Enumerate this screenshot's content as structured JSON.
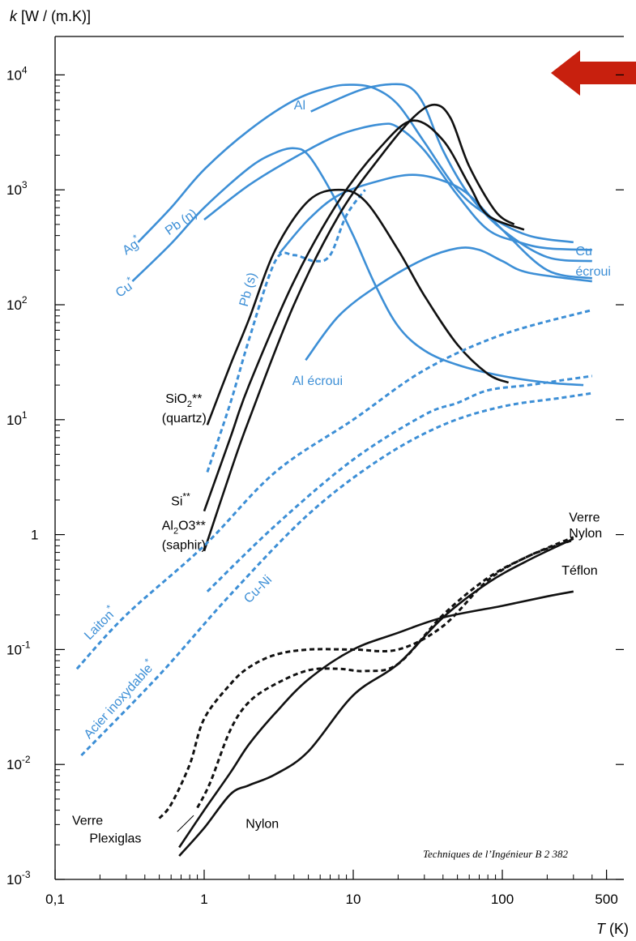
{
  "chart_data": {
    "type": "line",
    "x_scale": "log",
    "y_scale": "log",
    "xlim": [
      0.1,
      500
    ],
    "ylim": [
      0.001,
      10000
    ],
    "ylabel": "k [W / (m.K)]",
    "xlabel": "T (K)",
    "x_ticks": [
      {
        "value": 0.1,
        "label": "0,1"
      },
      {
        "value": 1,
        "label": "1"
      },
      {
        "value": 10,
        "label": "10"
      },
      {
        "value": 100,
        "label": "100"
      },
      {
        "value": 500,
        "label": "500"
      }
    ],
    "y_ticks": [
      {
        "value": 0.001,
        "label": "10-3",
        "base": "10",
        "exp": "-3"
      },
      {
        "value": 0.01,
        "label": "10-2",
        "base": "10",
        "exp": "-2"
      },
      {
        "value": 0.1,
        "label": "10-1",
        "base": "10",
        "exp": "-1"
      },
      {
        "value": 1,
        "label": "1",
        "base": "1",
        "exp": ""
      },
      {
        "value": 10,
        "label": "101",
        "base": "10",
        "exp": "1"
      },
      {
        "value": 100,
        "label": "102",
        "base": "10",
        "exp": "2"
      },
      {
        "value": 1000,
        "label": "103",
        "base": "10",
        "exp": "3"
      },
      {
        "value": 10000,
        "label": "104",
        "base": "10",
        "exp": "4"
      }
    ],
    "colors": {
      "blue": "#3d8fd6",
      "black": "#111111",
      "arrow": "#c8200e"
    },
    "series": [
      {
        "name": "Ag*",
        "color": "blue",
        "dashed": false,
        "points": [
          [
            0.36,
            350
          ],
          [
            0.6,
            700
          ],
          [
            1,
            1500
          ],
          [
            2,
            3300
          ],
          [
            4,
            6000
          ],
          [
            7,
            7800
          ],
          [
            10,
            8200
          ],
          [
            14,
            7600
          ],
          [
            20,
            5500
          ],
          [
            30,
            2600
          ],
          [
            50,
            1000
          ],
          [
            80,
            600
          ],
          [
            150,
            400
          ],
          [
            300,
            350
          ]
        ]
      },
      {
        "name": "Cu*",
        "color": "blue",
        "dashed": false,
        "points": [
          [
            0.33,
            160
          ],
          [
            0.6,
            340
          ],
          [
            1,
            700
          ],
          [
            2,
            1550
          ],
          [
            3,
            2100
          ],
          [
            4,
            2300
          ],
          [
            5,
            2000
          ],
          [
            7,
            1000
          ],
          [
            10,
            400
          ],
          [
            14,
            150
          ],
          [
            20,
            65
          ],
          [
            30,
            40
          ],
          [
            50,
            30
          ],
          [
            100,
            24
          ],
          [
            200,
            21
          ],
          [
            350,
            20
          ]
        ]
      },
      {
        "name": "Pb (n)",
        "color": "blue",
        "dashed": false,
        "points": [
          [
            1,
            550
          ],
          [
            2,
            1100
          ],
          [
            4,
            1900
          ],
          [
            8,
            3000
          ],
          [
            15,
            3700
          ],
          [
            20,
            3500
          ],
          [
            30,
            2200
          ],
          [
            50,
            900
          ],
          [
            80,
            450
          ],
          [
            130,
            350
          ],
          [
            200,
            310
          ],
          [
            400,
            300
          ]
        ]
      },
      {
        "name": "Al",
        "color": "blue",
        "dashed": false,
        "points": [
          [
            5.2,
            4800
          ],
          [
            8,
            6200
          ],
          [
            12,
            7600
          ],
          [
            18,
            8300
          ],
          [
            24,
            7800
          ],
          [
            30,
            5400
          ],
          [
            40,
            2200
          ],
          [
            60,
            900
          ],
          [
            100,
            450
          ],
          [
            200,
            260
          ],
          [
            400,
            240
          ]
        ]
      },
      {
        "name": "Cu écroui",
        "color": "blue",
        "dashed": false,
        "points": [
          [
            3.2,
            280
          ],
          [
            5,
            550
          ],
          [
            8,
            900
          ],
          [
            15,
            1200
          ],
          [
            25,
            1350
          ],
          [
            40,
            1200
          ],
          [
            60,
            900
          ],
          [
            100,
            450
          ],
          [
            200,
            200
          ],
          [
            400,
            170
          ]
        ]
      },
      {
        "name": "Al écroui",
        "color": "blue",
        "dashed": false,
        "points": [
          [
            4.8,
            33
          ],
          [
            8,
            80
          ],
          [
            15,
            150
          ],
          [
            30,
            250
          ],
          [
            50,
            310
          ],
          [
            70,
            300
          ],
          [
            100,
            240
          ],
          [
            150,
            190
          ],
          [
            400,
            160
          ]
        ]
      },
      {
        "name": "Pb (s)",
        "color": "blue",
        "dashed": true,
        "points": [
          [
            1.05,
            3.5
          ],
          [
            1.5,
            14
          ],
          [
            2,
            50
          ],
          [
            3,
            240
          ],
          [
            4,
            270
          ],
          [
            5.5,
            240
          ],
          [
            7,
            270
          ],
          [
            9,
            600
          ],
          [
            12,
            1000
          ]
        ]
      },
      {
        "name": "SiO2** (quartz)",
        "color": "black",
        "dashed": false,
        "points": [
          [
            1.05,
            9
          ],
          [
            1.5,
            30
          ],
          [
            2,
            75
          ],
          [
            3,
            300
          ],
          [
            5,
            800
          ],
          [
            8,
            1000
          ],
          [
            12,
            800
          ],
          [
            20,
            300
          ],
          [
            30,
            120
          ],
          [
            50,
            45
          ],
          [
            80,
            25
          ],
          [
            110,
            21
          ]
        ]
      },
      {
        "name": "Si**",
        "color": "black",
        "dashed": false,
        "points": [
          [
            1,
            1.6
          ],
          [
            1.5,
            7
          ],
          [
            2,
            20
          ],
          [
            4,
            160
          ],
          [
            8,
            800
          ],
          [
            15,
            2300
          ],
          [
            25,
            4000
          ],
          [
            40,
            2700
          ],
          [
            60,
            1100
          ],
          [
            80,
            600
          ],
          [
            140,
            450
          ]
        ]
      },
      {
        "name": "Al2O3** (saphir)",
        "color": "black",
        "dashed": false,
        "points": [
          [
            1,
            0.72
          ],
          [
            1.5,
            3.5
          ],
          [
            2,
            10
          ],
          [
            4,
            100
          ],
          [
            8,
            600
          ],
          [
            15,
            1900
          ],
          [
            25,
            4200
          ],
          [
            35,
            5500
          ],
          [
            45,
            4200
          ],
          [
            60,
            1600
          ],
          [
            90,
            650
          ],
          [
            120,
            500
          ]
        ]
      },
      {
        "name": "Laiton*",
        "color": "blue",
        "dashed": true,
        "points": [
          [
            0.14,
            0.068
          ],
          [
            0.3,
            0.2
          ],
          [
            1,
            0.8
          ],
          [
            3,
            3.5
          ],
          [
            10,
            10
          ],
          [
            30,
            27
          ],
          [
            100,
            55
          ],
          [
            400,
            90
          ]
        ]
      },
      {
        "name": "Cu-Ni",
        "color": "blue",
        "dashed": true,
        "points": [
          [
            1.05,
            0.32
          ],
          [
            3,
            1.2
          ],
          [
            10,
            4.5
          ],
          [
            30,
            11
          ],
          [
            50,
            14
          ],
          [
            80,
            18
          ],
          [
            150,
            20
          ],
          [
            250,
            22
          ],
          [
            400,
            24
          ]
        ]
      },
      {
        "name": "Acier inoxydable*",
        "color": "blue",
        "dashed": true,
        "points": [
          [
            0.15,
            0.012
          ],
          [
            0.5,
            0.06
          ],
          [
            1.5,
            0.3
          ],
          [
            5,
            1.5
          ],
          [
            15,
            4.5
          ],
          [
            40,
            9
          ],
          [
            100,
            13
          ],
          [
            250,
            15.5
          ],
          [
            400,
            17
          ]
        ]
      },
      {
        "name": "Verre",
        "color": "black",
        "dashed": true,
        "points": [
          [
            0.5,
            0.0034
          ],
          [
            0.6,
            0.0045
          ],
          [
            0.8,
            0.01
          ],
          [
            1,
            0.025
          ],
          [
            1.5,
            0.05
          ],
          [
            2,
            0.07
          ],
          [
            3,
            0.09
          ],
          [
            5,
            0.1
          ],
          [
            10,
            0.1
          ],
          [
            20,
            0.1
          ],
          [
            40,
            0.16
          ],
          [
            80,
            0.4
          ],
          [
            150,
            0.65
          ],
          [
            300,
            0.9
          ]
        ]
      },
      {
        "name": "Plexiglas",
        "color": "black",
        "dashed": true,
        "points": [
          [
            0.9,
            0.0042
          ],
          [
            1.1,
            0.007
          ],
          [
            1.5,
            0.02
          ],
          [
            2,
            0.035
          ],
          [
            3,
            0.05
          ],
          [
            5,
            0.066
          ],
          [
            8,
            0.068
          ],
          [
            12,
            0.065
          ],
          [
            20,
            0.075
          ],
          [
            40,
            0.2
          ],
          [
            80,
            0.42
          ],
          [
            150,
            0.65
          ],
          [
            300,
            0.95
          ]
        ]
      },
      {
        "name": "Nylon",
        "color": "black",
        "dashed": false,
        "points": [
          [
            0.68,
            0.0016
          ],
          [
            1,
            0.0028
          ],
          [
            1.5,
            0.0055
          ],
          [
            2,
            0.0066
          ],
          [
            3,
            0.0082
          ],
          [
            5,
            0.013
          ],
          [
            10,
            0.04
          ],
          [
            20,
            0.075
          ],
          [
            40,
            0.19
          ],
          [
            80,
            0.38
          ],
          [
            150,
            0.6
          ],
          [
            300,
            0.92
          ]
        ]
      },
      {
        "name": "Téflon",
        "color": "black",
        "dashed": false,
        "points": [
          [
            0.68,
            0.0019
          ],
          [
            1,
            0.004
          ],
          [
            1.5,
            0.0085
          ],
          [
            2,
            0.015
          ],
          [
            3,
            0.028
          ],
          [
            5,
            0.055
          ],
          [
            10,
            0.1
          ],
          [
            20,
            0.14
          ],
          [
            40,
            0.19
          ],
          [
            100,
            0.24
          ],
          [
            200,
            0.29
          ],
          [
            300,
            0.32
          ]
        ]
      }
    ],
    "labels": [
      {
        "text": "Ag",
        "sup": "*",
        "x": 0.3,
        "y": 270,
        "color": "blue",
        "rotate": -35
      },
      {
        "text": "Cu",
        "sup": "*",
        "x": 0.27,
        "y": 115,
        "color": "blue",
        "rotate": -35
      },
      {
        "text": "Pb (n)",
        "sup": "",
        "x": 0.58,
        "y": 400,
        "color": "blue",
        "rotate": -35
      },
      {
        "text": "Al",
        "sup": "",
        "x": 4.0,
        "y": 5000,
        "color": "blue",
        "rotate": 0
      },
      {
        "text": "Cu",
        "sup": "",
        "x": 310,
        "y": 270,
        "color": "blue",
        "rotate": 0
      },
      {
        "text": "écroui",
        "sup": "",
        "x": 310,
        "y": 180,
        "color": "blue",
        "rotate": 0
      },
      {
        "text": "Pb (s)",
        "sup": "",
        "x": 1.95,
        "y": 95,
        "color": "blue",
        "rotate": -75
      },
      {
        "text": "Al écroui",
        "sup": "",
        "x": 3.9,
        "y": 20,
        "color": "blue",
        "rotate": 0
      },
      {
        "text": "Laiton",
        "sup": "*",
        "x": 0.17,
        "y": 0.12,
        "color": "blue",
        "rotate": -45
      },
      {
        "text": "Cu-Ni",
        "sup": "",
        "x": 2.0,
        "y": 0.25,
        "color": "blue",
        "rotate": -45
      },
      {
        "text": "Acier inoxydable",
        "sup": "*",
        "x": 0.17,
        "y": 0.0165,
        "color": "blue",
        "rotate": -48
      },
      {
        "text": "Verre",
        "sup": "",
        "x": 280,
        "y": 1.3,
        "color": "black",
        "rotate": 0
      },
      {
        "text": "Nylon",
        "sup": "",
        "x": 280,
        "y": 0.95,
        "color": "black",
        "rotate": 0
      },
      {
        "text": "Téflon",
        "sup": "",
        "x": 250,
        "y": 0.45,
        "color": "black",
        "rotate": 0
      },
      {
        "text": "Nylon",
        "sup": "",
        "x": 1.9,
        "y": 0.0028,
        "color": "black",
        "rotate": 0
      },
      {
        "text": "Verre",
        "sup": "",
        "x": 0.13,
        "y": 0.003,
        "color": "black",
        "rotate": 0
      },
      {
        "text": "Plexiglas",
        "sup": "",
        "x": 0.17,
        "y": 0.0021,
        "color": "black",
        "rotate": 0
      },
      {
        "text": "SiO",
        "sub": "2",
        "sup": "**",
        "x": 0.55,
        "y": 14,
        "color": "black",
        "rotate": 0
      },
      {
        "text": "(quartz)",
        "sup": "",
        "x": 0.52,
        "y": 9.5,
        "color": "black",
        "rotate": 0
      },
      {
        "text": "Si",
        "sup": "**",
        "x": 0.6,
        "y": 1.8,
        "color": "black",
        "rotate": 0
      },
      {
        "text": "Al",
        "sub": "2",
        "sup": "O3**",
        "x": 0.52,
        "y": 1.1,
        "color": "black",
        "rotate": 0
      },
      {
        "text": "(saphir)",
        "sup": "",
        "x": 0.52,
        "y": 0.75,
        "color": "black",
        "rotate": 0
      }
    ],
    "source": "Techniques de l’Ingénieur B 2 382"
  }
}
